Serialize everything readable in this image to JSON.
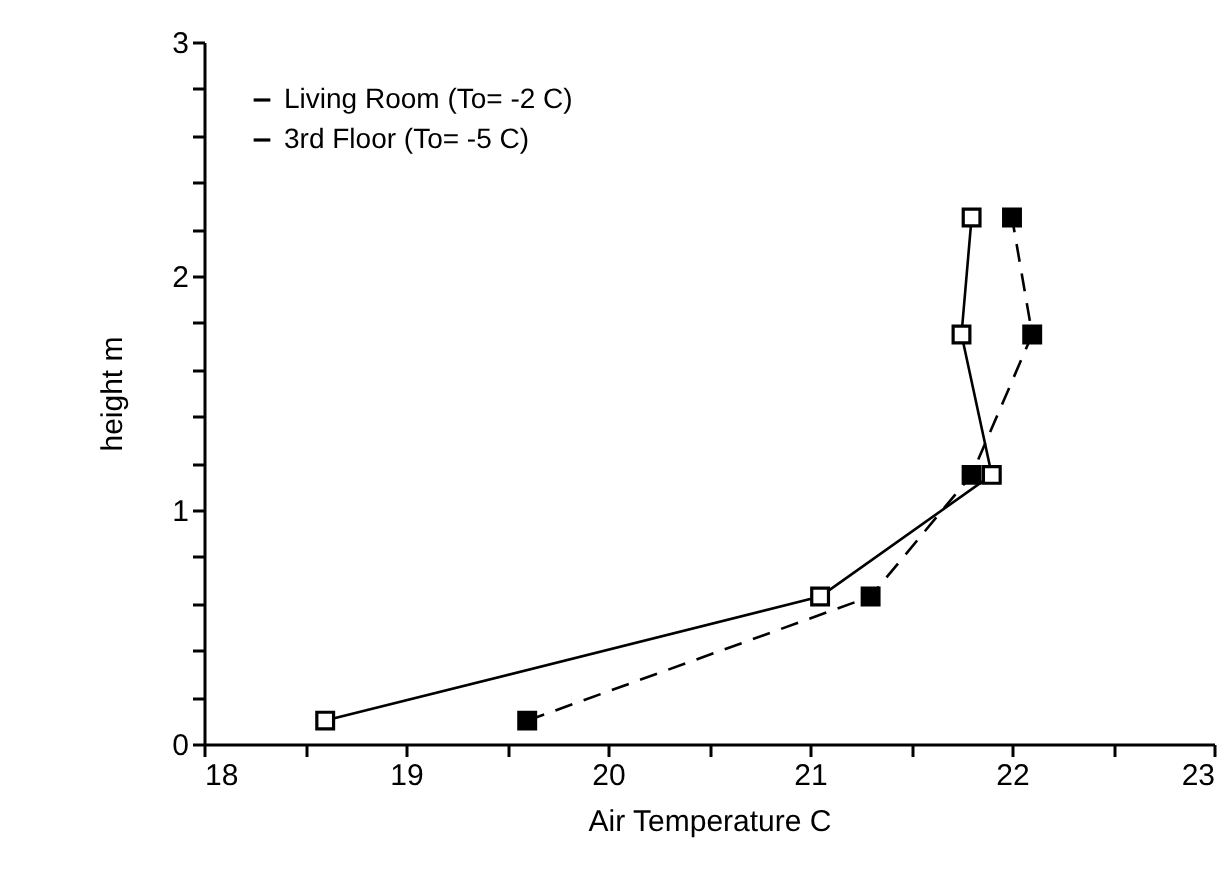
{
  "chart_data": {
    "type": "line",
    "xlabel": "Air Temperature    C",
    "ylabel": "height   m",
    "series": [
      {
        "name": "Living Room  (To= -2 C)",
        "color": "#000000",
        "line_style": "solid",
        "x": [
          18.6,
          21.05,
          21.9,
          21.75,
          21.8
        ],
        "values": [
          0.1,
          0.63,
          1.15,
          1.75,
          2.25
        ]
      },
      {
        "name": "3rd Floor  (To= -5 C)",
        "color": "#000000",
        "line_style": "dashed",
        "x": [
          19.6,
          21.3,
          21.8,
          22.1,
          22.0
        ],
        "values": [
          0.1,
          0.63,
          1.15,
          1.75,
          2.25
        ]
      }
    ],
    "marker": "square",
    "legend": "top left",
    "grid": false,
    "xlim": [
      18,
      23
    ],
    "xticks": [
      18,
      {
        "value": 18.5,
        "label": null
      },
      19,
      {
        "value": 19.5,
        "label": null
      },
      20,
      {
        "value": 20.5,
        "label": null
      },
      21,
      {
        "value": 21.5,
        "label": null
      },
      22,
      {
        "value": 22.5,
        "label": null
      },
      23
    ],
    "ylim": [
      0,
      3
    ],
    "yticks": [
      0,
      {
        "value": 0.2,
        "label": null
      },
      {
        "value": 0.4,
        "label": null
      },
      {
        "value": 0.6,
        "label": null
      },
      {
        "value": 0.8,
        "label": null
      },
      1,
      {
        "value": 1.2,
        "label": null
      },
      {
        "value": 1.4,
        "label": null
      },
      {
        "value": 1.6,
        "label": null
      },
      {
        "value": 1.8,
        "label": null
      },
      2,
      {
        "value": 2.2,
        "label": null
      },
      {
        "value": 2.4,
        "label": null
      },
      {
        "value": 2.6,
        "label": null
      },
      {
        "value": 2.8,
        "label": null
      },
      3
    ]
  }
}
